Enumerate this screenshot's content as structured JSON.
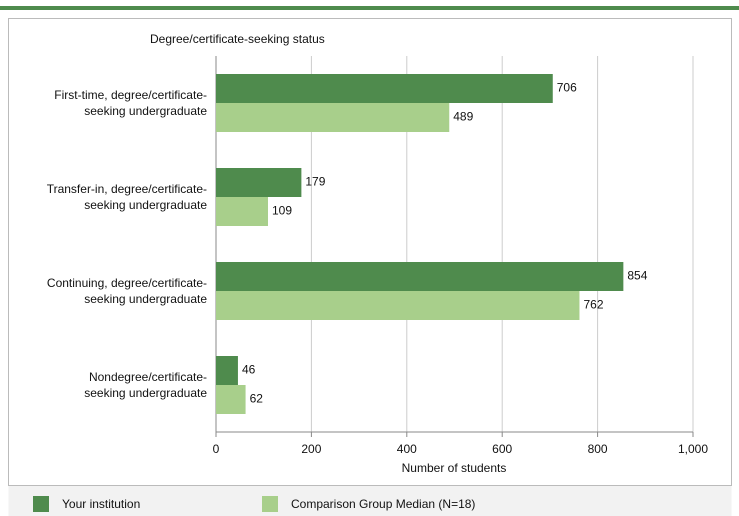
{
  "chart_data": {
    "type": "bar",
    "orientation": "horizontal",
    "title": "Degree/certificate-seeking status",
    "categories": [
      "First-time, degree/certificate-\nseeking undergraduate",
      "Transfer-in, degree/certificate-\nseeking undergraduate",
      "Continuing, degree/certificate-\nseeking undergraduate",
      "Nondegree/certificate-\nseeking undergraduate"
    ],
    "series": [
      {
        "name": "Your institution",
        "color": "#4f8b4d",
        "values": [
          706,
          179,
          854,
          46
        ]
      },
      {
        "name": "Comparison Group Median (N=18)",
        "color": "#a8cf8b",
        "values": [
          489,
          109,
          762,
          62
        ]
      }
    ],
    "xlabel": "Number of students",
    "xlim": [
      0,
      1000
    ],
    "xticks": [
      0,
      200,
      400,
      600,
      800,
      {
        "value": 1000,
        "label": "1,000"
      }
    ],
    "grid": true
  }
}
